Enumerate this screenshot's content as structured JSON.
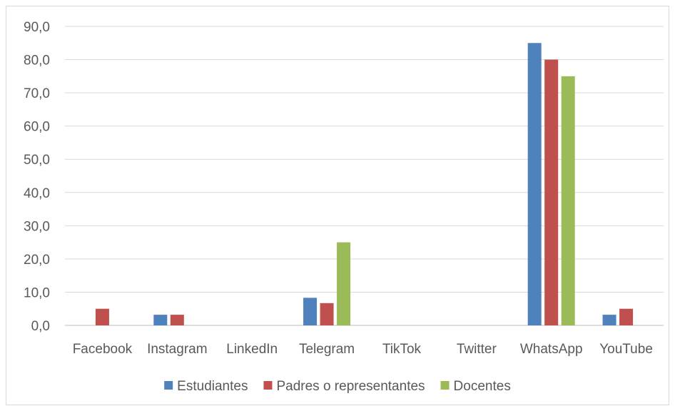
{
  "chart_data": {
    "type": "bar",
    "title": "",
    "xlabel": "",
    "ylabel": "",
    "categories": [
      "Facebook",
      "Instagram",
      "LinkedIn",
      "Telegram",
      "TikTok",
      "Twitter",
      "WhatsApp",
      "YouTube"
    ],
    "series": [
      {
        "name": "Estudiantes",
        "color": "#4f81bd",
        "values": [
          0,
          3.2,
          0,
          8.3,
          0,
          0,
          85.0,
          3.2
        ]
      },
      {
        "name": "Padres o representantes",
        "color": "#c0504d",
        "values": [
          5.0,
          3.2,
          0,
          6.7,
          0,
          0,
          80.0,
          5.0
        ]
      },
      {
        "name": "Docentes",
        "color": "#9bbb59",
        "values": [
          0,
          0,
          0,
          25.0,
          0,
          0,
          75.0,
          0
        ]
      }
    ],
    "ylim": [
      0,
      90
    ],
    "yticks": [
      "0,0",
      "10,0",
      "20,0",
      "30,0",
      "40,0",
      "50,0",
      "60,0",
      "70,0",
      "80,0",
      "90,0"
    ],
    "grid": true,
    "legend_position": "bottom"
  }
}
